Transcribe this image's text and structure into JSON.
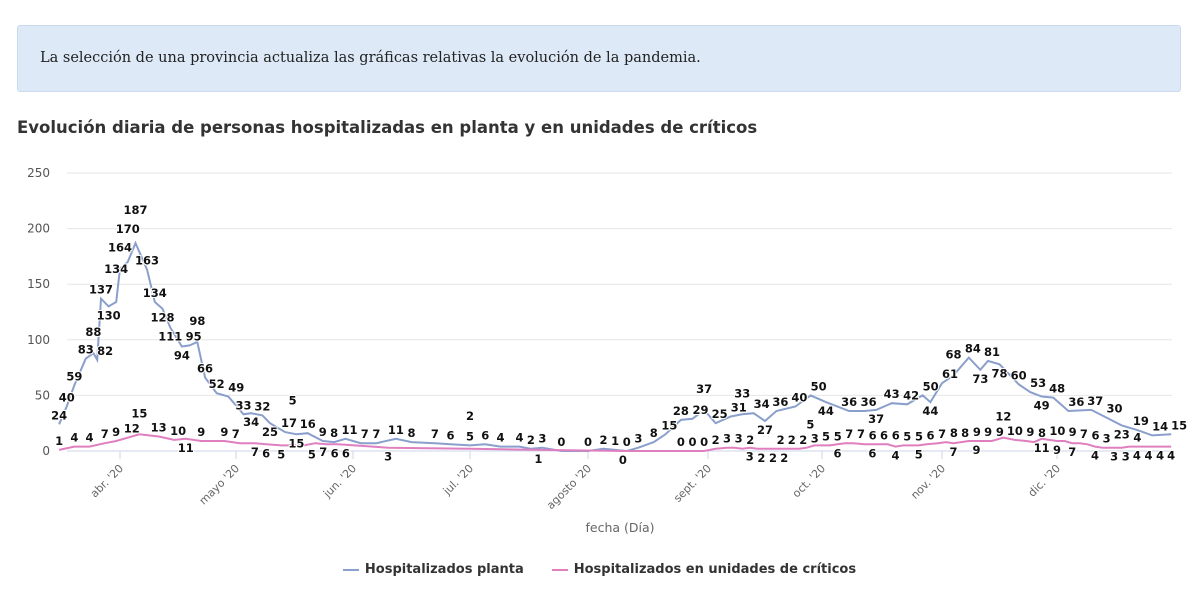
{
  "banner": {
    "text": "La selección de una provincia actualiza las gráficas relativas la evolución de la pandemia."
  },
  "chart_data": {
    "type": "line",
    "title": "Evolución diaria de personas hospitalizadas en planta y en unidades de críticos",
    "xlabel": "fecha (Día)",
    "ylabel": "",
    "ylim": [
      0,
      250
    ],
    "yticks": [
      0,
      50,
      100,
      150,
      200,
      250
    ],
    "xticks": [
      {
        "date": "2020-04-01",
        "label": "abr. '20"
      },
      {
        "date": "2020-05-01",
        "label": "mayo '20"
      },
      {
        "date": "2020-06-01",
        "label": "jun. '20"
      },
      {
        "date": "2020-07-01",
        "label": "jul. '20"
      },
      {
        "date": "2020-08-01",
        "label": "agosto '20"
      },
      {
        "date": "2020-09-01",
        "label": "sept. '20"
      },
      {
        "date": "2020-10-01",
        "label": "oct. '20"
      },
      {
        "date": "2020-11-01",
        "label": "nov. '20"
      },
      {
        "date": "2020-12-01",
        "label": "dic. '20"
      }
    ],
    "grid": true,
    "legend_position": "bottom",
    "series": [
      {
        "name": "Hospitalizados planta",
        "color": "#8a9fcc",
        "points": [
          [
            "2020-03-16",
            24
          ],
          [
            "2020-03-18",
            40
          ],
          [
            "2020-03-20",
            59
          ],
          [
            "2020-03-23",
            83
          ],
          [
            "2020-03-25",
            88
          ],
          [
            "2020-03-26",
            82
          ],
          [
            "2020-03-27",
            137
          ],
          [
            "2020-03-29",
            130
          ],
          [
            "2020-03-31",
            134
          ],
          [
            "2020-04-01",
            164
          ],
          [
            "2020-04-03",
            170
          ],
          [
            "2020-04-05",
            187
          ],
          [
            "2020-04-08",
            163
          ],
          [
            "2020-04-10",
            134
          ],
          [
            "2020-04-12",
            128
          ],
          [
            "2020-04-14",
            111
          ],
          [
            "2020-04-17",
            94
          ],
          [
            "2020-04-19",
            95
          ],
          [
            "2020-04-21",
            98
          ],
          [
            "2020-04-23",
            66
          ],
          [
            "2020-04-26",
            52
          ],
          [
            "2020-04-29",
            49
          ],
          [
            "2020-05-03",
            33
          ],
          [
            "2020-05-05",
            34
          ],
          [
            "2020-05-08",
            32
          ],
          [
            "2020-05-10",
            25
          ],
          [
            "2020-05-14",
            17
          ],
          [
            "2020-05-17",
            15
          ],
          [
            "2020-05-20",
            16
          ],
          [
            "2020-05-24",
            9
          ],
          [
            "2020-05-27",
            8
          ],
          [
            "2020-05-30",
            11
          ],
          [
            "2020-06-03",
            7
          ],
          [
            "2020-06-07",
            7
          ],
          [
            "2020-06-12",
            11
          ],
          [
            "2020-06-16",
            8
          ],
          [
            "2020-06-22",
            7
          ],
          [
            "2020-06-26",
            6
          ],
          [
            "2020-07-01",
            5
          ],
          [
            "2020-07-05",
            6
          ],
          [
            "2020-07-09",
            4
          ],
          [
            "2020-07-14",
            4
          ],
          [
            "2020-07-17",
            2
          ],
          [
            "2020-07-20",
            3
          ],
          [
            "2020-07-25",
            0
          ],
          [
            "2020-08-01",
            0
          ],
          [
            "2020-08-05",
            2
          ],
          [
            "2020-08-08",
            1
          ],
          [
            "2020-08-11",
            0
          ],
          [
            "2020-08-14",
            3
          ],
          [
            "2020-08-18",
            8
          ],
          [
            "2020-08-21",
            15
          ],
          [
            "2020-08-25",
            28
          ],
          [
            "2020-08-28",
            29
          ],
          [
            "2020-08-31",
            37
          ],
          [
            "2020-09-03",
            25
          ],
          [
            "2020-09-07",
            31
          ],
          [
            "2020-09-10",
            33
          ],
          [
            "2020-09-13",
            34
          ],
          [
            "2020-09-16",
            27
          ],
          [
            "2020-09-19",
            36
          ],
          [
            "2020-09-24",
            40
          ],
          [
            "2020-09-28",
            50
          ],
          [
            "2020-10-02",
            44
          ],
          [
            "2020-10-08",
            36
          ],
          [
            "2020-10-12",
            36
          ],
          [
            "2020-10-15",
            37
          ],
          [
            "2020-10-19",
            43
          ],
          [
            "2020-10-23",
            42
          ],
          [
            "2020-10-27",
            50
          ],
          [
            "2020-10-29",
            44
          ],
          [
            "2020-11-01",
            61
          ],
          [
            "2020-11-04",
            68
          ],
          [
            "2020-11-08",
            84
          ],
          [
            "2020-11-11",
            73
          ],
          [
            "2020-11-13",
            81
          ],
          [
            "2020-11-16",
            78
          ],
          [
            "2020-11-21",
            60
          ],
          [
            "2020-11-24",
            53
          ],
          [
            "2020-11-27",
            49
          ],
          [
            "2020-11-30",
            48
          ],
          [
            "2020-12-04",
            36
          ],
          [
            "2020-12-10",
            37
          ],
          [
            "2020-12-14",
            30
          ],
          [
            "2020-12-18",
            23
          ],
          [
            "2020-12-22",
            19
          ],
          [
            "2020-12-26",
            14
          ],
          [
            "2020-12-31",
            15
          ]
        ]
      },
      {
        "name": "Hospitalizados en unidades de críticos",
        "color": "#e07fc0",
        "points": [
          [
            "2020-03-16",
            1
          ],
          [
            "2020-03-20",
            4
          ],
          [
            "2020-03-24",
            4
          ],
          [
            "2020-03-28",
            7
          ],
          [
            "2020-03-31",
            9
          ],
          [
            "2020-04-03",
            12
          ],
          [
            "2020-04-06",
            15
          ],
          [
            "2020-04-11",
            13
          ],
          [
            "2020-04-15",
            10
          ],
          [
            "2020-04-18",
            11
          ],
          [
            "2020-04-22",
            9
          ],
          [
            "2020-04-28",
            9
          ],
          [
            "2020-05-02",
            7
          ],
          [
            "2020-05-06",
            7
          ],
          [
            "2020-05-09",
            6
          ],
          [
            "2020-05-13",
            5
          ],
          [
            "2020-05-16",
            5
          ],
          [
            "2020-05-19",
            5
          ],
          [
            "2020-05-22",
            7
          ],
          [
            "2020-05-25",
            6
          ],
          [
            "2020-05-28",
            6
          ],
          [
            "2020-06-10",
            3
          ],
          [
            "2020-07-01",
            2
          ],
          [
            "2020-07-20",
            1
          ],
          [
            "2020-08-10",
            0
          ],
          [
            "2020-08-25",
            0
          ],
          [
            "2020-08-28",
            0
          ],
          [
            "2020-08-31",
            0
          ],
          [
            "2020-09-03",
            2
          ],
          [
            "2020-09-06",
            3
          ],
          [
            "2020-09-08",
            3
          ],
          [
            "2020-09-10",
            2
          ],
          [
            "2020-09-12",
            3
          ],
          [
            "2020-09-14",
            2
          ],
          [
            "2020-09-16",
            2
          ],
          [
            "2020-09-18",
            2
          ],
          [
            "2020-09-20",
            2
          ],
          [
            "2020-09-22",
            2
          ],
          [
            "2020-09-25",
            2
          ],
          [
            "2020-09-27",
            3
          ],
          [
            "2020-09-29",
            5
          ],
          [
            "2020-10-01",
            5
          ],
          [
            "2020-10-03",
            5
          ],
          [
            "2020-10-05",
            6
          ],
          [
            "2020-10-07",
            7
          ],
          [
            "2020-10-09",
            7
          ],
          [
            "2020-10-12",
            6
          ],
          [
            "2020-10-14",
            6
          ],
          [
            "2020-10-16",
            6
          ],
          [
            "2020-10-18",
            6
          ],
          [
            "2020-10-20",
            4
          ],
          [
            "2020-10-22",
            5
          ],
          [
            "2020-10-24",
            5
          ],
          [
            "2020-10-26",
            5
          ],
          [
            "2020-10-28",
            6
          ],
          [
            "2020-10-31",
            7
          ],
          [
            "2020-11-02",
            8
          ],
          [
            "2020-11-04",
            7
          ],
          [
            "2020-11-06",
            8
          ],
          [
            "2020-11-08",
            9
          ],
          [
            "2020-11-10",
            9
          ],
          [
            "2020-11-12",
            9
          ],
          [
            "2020-11-14",
            9
          ],
          [
            "2020-11-17",
            12
          ],
          [
            "2020-11-20",
            10
          ],
          [
            "2020-11-23",
            9
          ],
          [
            "2020-11-25",
            8
          ],
          [
            "2020-11-27",
            11
          ],
          [
            "2020-11-29",
            10
          ],
          [
            "2020-12-01",
            9
          ],
          [
            "2020-12-03",
            9
          ],
          [
            "2020-12-05",
            7
          ],
          [
            "2020-12-07",
            7
          ],
          [
            "2020-12-09",
            6
          ],
          [
            "2020-12-11",
            4
          ],
          [
            "2020-12-13",
            3
          ],
          [
            "2020-12-16",
            3
          ],
          [
            "2020-12-18",
            3
          ],
          [
            "2020-12-20",
            4
          ],
          [
            "2020-12-22",
            4
          ],
          [
            "2020-12-24",
            4
          ],
          [
            "2020-12-26",
            4
          ],
          [
            "2020-12-31",
            4
          ]
        ]
      }
    ]
  }
}
